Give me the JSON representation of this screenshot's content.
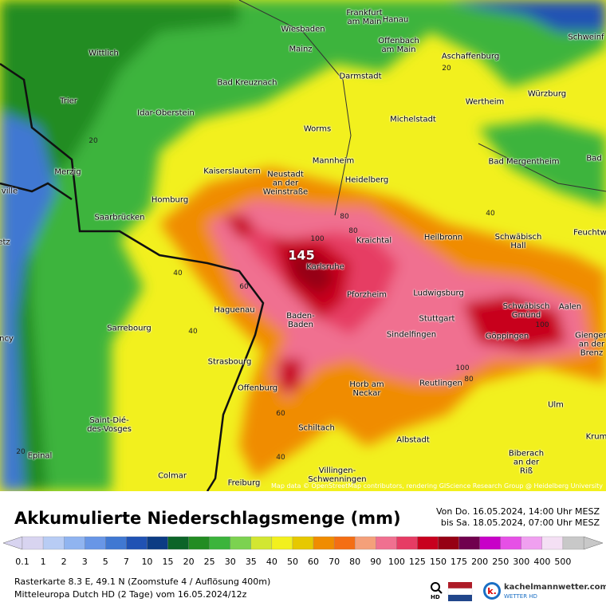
{
  "map": {
    "cities": [
      "Frankfurt\nam Main",
      "Hanau",
      "Wiesbaden",
      "Schweinf",
      "Offenbach\nam Main",
      "Mainz",
      "Aschaffenburg",
      "Wittlich",
      "Bad Kreuznach",
      "Darmstadt",
      "Trier",
      "Wertheim",
      "Würzburg",
      "Idar-Oberstein",
      "Michelstadt",
      "Worms",
      "Merzig",
      "Bad Mergentheim",
      "Bad",
      "Kaiserslautern",
      "Neustadt\nan der\nWeinstraße",
      "Mannheim",
      "Heidelberg",
      "ville",
      "Homburg",
      "Saarbrücken",
      "Heilbronn",
      "Schwäbisch\nHall",
      "Feuchtw",
      "Kraichtal",
      "etz",
      "Karlsruhe",
      "Pforzheim",
      "Ludwigsburg",
      "Haguenau",
      "Schwäbisch\nGmünd",
      "Aalen",
      "Baden-\nBaden",
      "Stuttgart",
      "Sarrebourg",
      "Sindelfingen",
      "Göppingen",
      "Giengen\nan der\nBrenz",
      "ncy",
      "Strasbourg",
      "Offenburg",
      "Reutlingen",
      "Horb am\nNeckar",
      "Ulm",
      "Saint-Dié-\ndes-Vosges",
      "Schiltach",
      "Albstadt",
      "Krum",
      "Epinal",
      "Biberach\nan der\nRiß",
      "Villingen-\nSchwenningen",
      "Colmar",
      "Freiburg"
    ],
    "contour_labels": [
      "145",
      "100",
      "80",
      "80",
      "60",
      "40",
      "40",
      "20",
      "60",
      "40",
      "100",
      "80",
      "100",
      "40",
      "20",
      "20"
    ],
    "attribution": "Map data © OpenStreetMap contributors, rendering GIScience Research Group @ Heidelberg University"
  },
  "header": {
    "title": "Akkumulierte Niederschlagsmenge (mm)",
    "from": "Von Do. 16.05.2024, 14:00 Uhr MESZ",
    "to": "bis Sa. 18.05.2024, 07:00 Uhr MESZ"
  },
  "legend": {
    "values": [
      0.1,
      1,
      2,
      3,
      5,
      7,
      10,
      15,
      20,
      25,
      30,
      35,
      40,
      50,
      60,
      70,
      80,
      90,
      100,
      125,
      150,
      175,
      200,
      250,
      300,
      400,
      500
    ],
    "colors": [
      "#d8d4f0",
      "#b8ccf4",
      "#90b4f0",
      "#6896e6",
      "#4078d2",
      "#2052b4",
      "#0c3c84",
      "#0c6428",
      "#228c22",
      "#3cb43c",
      "#7cd250",
      "#d2e632",
      "#f2f01e",
      "#e6c800",
      "#f08c00",
      "#f46e14",
      "#f4a07a",
      "#f07090",
      "#e63c64",
      "#c8001e",
      "#960014",
      "#70004e",
      "#c800c8",
      "#e650e6",
      "#f0a0f0",
      "#f4e0f4",
      "#c8c8c8"
    ]
  },
  "footer": {
    "line1": "Rasterkarte 8.3 E, 49.1 N (Zoomstufe 4 / Auflösung 400m)",
    "line2": "Mitteleuropa Dutch HD (2 Tage) vom 16.05.2024/12z",
    "hd": "HD",
    "brand": "kachelmannwetter.com",
    "brand_sub": "WETTER HD"
  }
}
